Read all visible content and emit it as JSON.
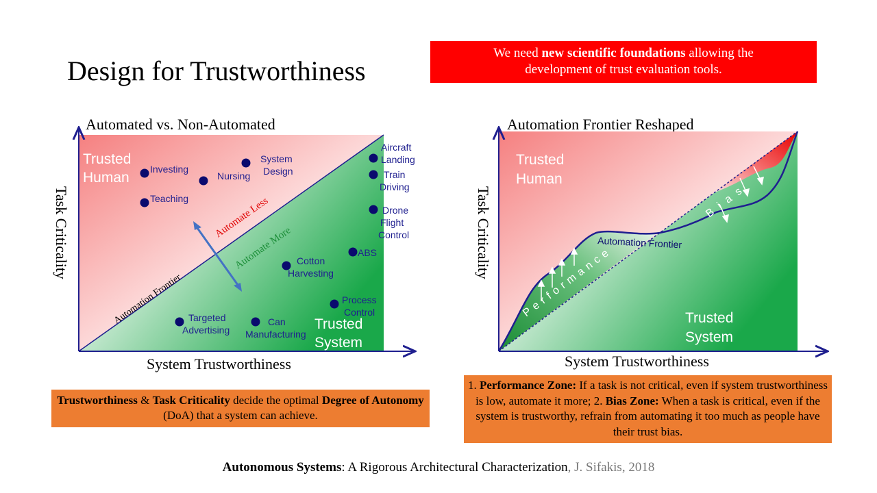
{
  "slide_title": "Design for Trustworthiness",
  "banner": {
    "pre": "We need ",
    "bold": "new scientific foundations",
    "post": " allowing the",
    "line2": "development of trust evaluation tools."
  },
  "left_chart": {
    "title": "Automated vs. Non-Automated",
    "xlabel": "System Trustworthiness",
    "ylabel": "Task Criticality",
    "region_top": [
      "Trusted",
      "Human"
    ],
    "region_bottom": [
      "Trusted",
      "System"
    ],
    "frontier_label": "Automation Frontier",
    "automate_less": "Automate Less",
    "automate_more": "Automate More",
    "points": [
      {
        "lines": [
          "Investing"
        ]
      },
      {
        "lines": [
          "Nursing"
        ]
      },
      {
        "lines": [
          "System",
          "Design"
        ]
      },
      {
        "lines": [
          "Teaching"
        ]
      },
      {
        "lines": [
          "Aircraft",
          "Landing"
        ]
      },
      {
        "lines": [
          "Train",
          "Driving"
        ]
      },
      {
        "lines": [
          "Drone",
          "Flight",
          "Control"
        ]
      },
      {
        "lines": [
          "ABS"
        ]
      },
      {
        "lines": [
          "Cotton",
          "Harvesting"
        ]
      },
      {
        "lines": [
          "Process",
          "Control"
        ]
      },
      {
        "lines": [
          "Targeted",
          "Advertising"
        ]
      },
      {
        "lines": [
          "Can",
          "Manufacturing"
        ]
      }
    ]
  },
  "right_chart": {
    "title": "Automation Frontier Reshaped",
    "xlabel": "System Trustworthiness",
    "ylabel": "Task Criticality",
    "region_top": [
      "Trusted",
      "Human"
    ],
    "region_bottom": [
      "Trusted",
      "System"
    ],
    "frontier_label": "Automation Frontier",
    "performance_label": "Performance",
    "bias_label": "Bias"
  },
  "left_note": {
    "b1": "Trustworthiness",
    "t1": " & ",
    "b2": "Task Criticality",
    "t2": " decide the optimal ",
    "b3": "Degree of Autonomy",
    "t3": " (DoA) that a system can achieve."
  },
  "right_note": {
    "n1": "1. ",
    "b1": "Performance Zone:",
    "t1": " If a task is not critical, even if system trustworthiness is low, automate it more; 2. ",
    "b2": "Bias Zone:",
    "t2": " When a task is critical, even if the system is trustworthy, refrain from automating it too much as people have their trust bias."
  },
  "footer": {
    "bold": "Autonomous Systems",
    "text": ": A Rigorous Architectural Characterization",
    "muted": ",  J. Sifakis, 2018"
  },
  "colors": {
    "red": "#ff0000",
    "orange": "#ed7d31",
    "navy": "#1f1f8f",
    "dot": "#0a0a6e",
    "green": "#1e8f3a",
    "arrow_blue": "#4472c4"
  }
}
